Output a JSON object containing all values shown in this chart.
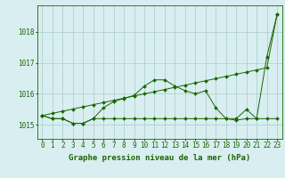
{
  "title": "Graphe pression niveau de la mer (hPa)",
  "x": [
    0,
    1,
    2,
    3,
    4,
    5,
    6,
    7,
    8,
    9,
    10,
    11,
    12,
    13,
    14,
    15,
    16,
    17,
    18,
    19,
    20,
    21,
    22,
    23
  ],
  "series_flat": [
    1015.3,
    1015.2,
    1015.2,
    1015.05,
    1015.05,
    1015.2,
    1015.2,
    1015.2,
    1015.2,
    1015.2,
    1015.2,
    1015.2,
    1015.2,
    1015.2,
    1015.2,
    1015.2,
    1015.2,
    1015.2,
    1015.2,
    1015.2,
    1015.5,
    1015.2,
    1015.2,
    1015.2
  ],
  "series_bell": [
    1015.3,
    1015.2,
    1015.2,
    1015.05,
    1015.05,
    1015.2,
    1015.55,
    1015.75,
    1015.85,
    1015.95,
    1016.25,
    1016.45,
    1016.45,
    1016.25,
    1016.1,
    1016.0,
    1016.1,
    1015.55,
    1015.2,
    1015.15,
    1015.2,
    1015.2,
    1017.2,
    1018.55
  ],
  "series_diag": [
    1015.3,
    1015.37,
    1015.44,
    1015.51,
    1015.58,
    1015.65,
    1015.72,
    1015.79,
    1015.86,
    1015.93,
    1016.0,
    1016.07,
    1016.14,
    1016.21,
    1016.28,
    1016.35,
    1016.42,
    1016.49,
    1016.56,
    1016.63,
    1016.7,
    1016.77,
    1016.84,
    1018.55
  ],
  "line_color": "#1a6600",
  "bg_color": "#d8eef0",
  "grid_color": "#aacccc",
  "label_color": "#1a6600",
  "ylim_min": 1014.55,
  "ylim_max": 1018.85,
  "yticks": [
    1015,
    1016,
    1017,
    1018
  ],
  "font_size": 6,
  "title_font_size": 6.5
}
